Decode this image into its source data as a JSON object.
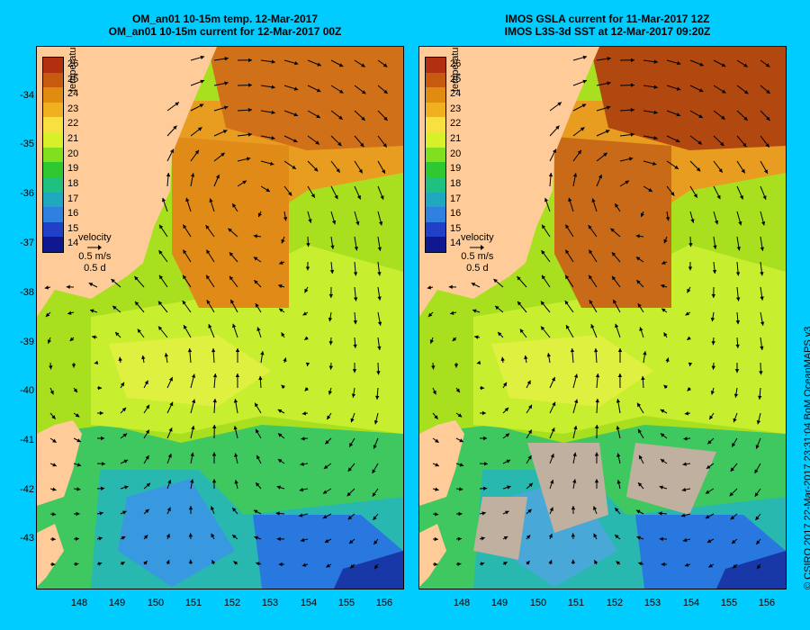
{
  "left": {
    "title_line1": "OM_an01 10-15m temp. 12-Mar-2017",
    "title_line2": "OM_an01 10-15m current for 12-Mar-2017 00Z"
  },
  "right": {
    "title_line1": "IMOS GSLA current for 11-Mar-2017 12Z",
    "title_line2": "IMOS L3S-3d SST at 12-Mar-2017 09:20Z"
  },
  "legend": {
    "title": "temperature (°C)",
    "labels": [
      "26",
      "25",
      "24",
      "23",
      "22",
      "21",
      "20",
      "19",
      "18",
      "17",
      "16",
      "15",
      "14"
    ],
    "colors": [
      "#b03010",
      "#c85a10",
      "#e08c10",
      "#f0b020",
      "#f8e040",
      "#d8f028",
      "#80e020",
      "#30c830",
      "#20c080",
      "#20a8c0",
      "#3080e0",
      "#2040c8",
      "#101890"
    ]
  },
  "velocity": {
    "label": "velocity",
    "speed": "0.5 m/s",
    "duration": "0.5 d"
  },
  "axes": {
    "lat_labels": [
      "-34",
      "-35",
      "-36",
      "-37",
      "-38",
      "-39",
      "-40",
      "-41",
      "-42",
      "-43"
    ],
    "lon_labels": [
      "148",
      "149",
      "150",
      "151",
      "152",
      "153",
      "154",
      "155",
      "156"
    ]
  },
  "credit": "© CSIRO 2017  22-Mar-2017 23:31:04 BoM OceanMAPS v3"
}
